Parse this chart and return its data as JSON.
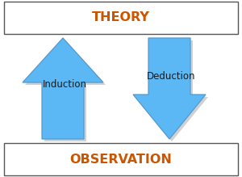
{
  "bg_color": "#ffffff",
  "border_color": "#555555",
  "arrow_fill": "#5BB8F5",
  "arrow_fill_light": "#A8D8F0",
  "arrow_edge": "#5599CC",
  "shadow_color": "#999999",
  "text_color": "#1a1a1a",
  "header_text_color": "#cc5500",
  "theory_label": "THEORY",
  "observation_label": "OBSERVATION",
  "induction_label": "Induction",
  "deduction_label": "Deduction",
  "title_fontsize": 11.5,
  "label_fontsize": 8.5
}
